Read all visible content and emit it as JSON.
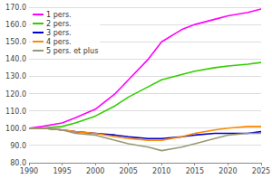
{
  "chart_data": {
    "type": "line",
    "x": [
      1990,
      1992,
      1995,
      1997,
      2000,
      2003,
      2005,
      2008,
      2010,
      2013,
      2015,
      2018,
      2020,
      2023,
      2025
    ],
    "series": [
      {
        "name": "1 pers.",
        "color": "#ff00ff",
        "values": [
          100,
          101,
          103,
          106,
          111,
          120,
          128,
          140,
          150,
          157,
          160,
          163,
          165,
          167,
          169
        ]
      },
      {
        "name": "2 pers.",
        "color": "#33cc00",
        "values": [
          100,
          100,
          101,
          103,
          107,
          113,
          118,
          124,
          128,
          131,
          133,
          135,
          136,
          137,
          138
        ]
      },
      {
        "name": "3 pers.",
        "color": "#0000cc",
        "values": [
          100,
          100,
          99,
          98,
          97,
          96,
          95,
          94,
          94,
          95,
          96,
          97,
          97,
          97,
          98
        ]
      },
      {
        "name": "4 pers.",
        "color": "#ff8800",
        "values": [
          100,
          100,
          99,
          98,
          97,
          95,
          94,
          93,
          93,
          95,
          97,
          99,
          100,
          101,
          101
        ]
      },
      {
        "name": "5 pers. et plus",
        "color": "#999977",
        "values": [
          100,
          100,
          99,
          97,
          96,
          93,
          91,
          89,
          87,
          89,
          91,
          94,
          96,
          97,
          97
        ]
      }
    ],
    "xlim": [
      1990,
      2025
    ],
    "xticks": [
      1990,
      1995,
      2000,
      2005,
      2010,
      2015,
      2020,
      2025
    ],
    "ylim": [
      80,
      170
    ],
    "yticks": [
      {
        "value": 80.0,
        "label": "80.0"
      },
      {
        "value": 90.0,
        "label": "90.0"
      },
      {
        "value": 100.0,
        "label": "100.0"
      },
      {
        "value": 110.0,
        "label": "110.0"
      },
      {
        "value": 120.0,
        "label": "120.0"
      },
      {
        "value": 130.0,
        "label": "130.0"
      },
      {
        "value": 140.0,
        "label": "140.0"
      },
      {
        "value": 150.0,
        "label": "150.0"
      },
      {
        "value": 160.0,
        "label": "160.0"
      },
      {
        "value": 170.0,
        "label": "170.0"
      }
    ],
    "grid": true,
    "legend": "upper left"
  }
}
